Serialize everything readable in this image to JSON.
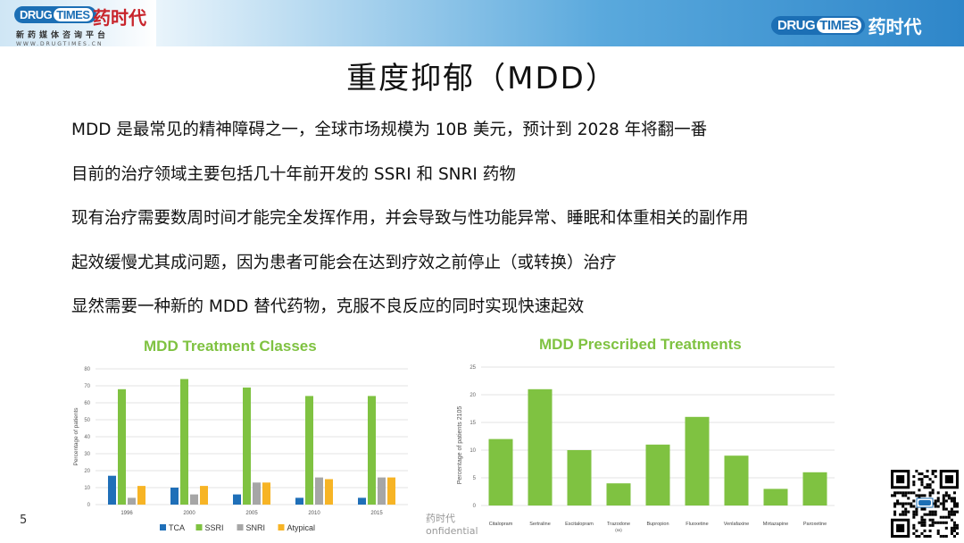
{
  "header": {
    "logo_left_badge_a": "DRUG",
    "logo_left_badge_b": "TIMES",
    "logo_left_cn": "药时代",
    "logo_left_sub": "新药媒体咨询平台",
    "logo_left_url": "WWW.DRUGTIMES.CN",
    "logo_right_badge_a": "DRUG",
    "logo_right_badge_b": "TIMES",
    "logo_right_cn": "药时代"
  },
  "slide": {
    "title": "重度抑郁（MDD）",
    "bullets": [
      "MDD 是最常见的精神障碍之一，全球市场规模为 10B 美元，预计到 2028 年将翻一番",
      "目前的治疗领域主要包括几十年前开发的 SSRI 和 SNRI 药物",
      "现有治疗需要数周时间才能完全发挥作用，并会导致与性功能异常、睡眠和体重相关的副作用",
      "起效缓慢尤其成问题，因为患者可能会在达到疗效之前停止（或转换）治疗",
      "显然需要一种新的 MDD 替代药物，克服不良反应的同时实现快速起效"
    ],
    "page_number": "5",
    "confidential_1": "药时代",
    "confidential_2": "onfidential"
  },
  "chart_data": [
    {
      "type": "bar",
      "title": "MDD Treatment Classes",
      "xlabel": "",
      "ylabel": "Percentage of patients",
      "ylim": [
        0,
        80
      ],
      "yticks": [
        0,
        10,
        20,
        30,
        40,
        50,
        60,
        70,
        80
      ],
      "categories": [
        "1996",
        "2000",
        "2005",
        "2010",
        "2015"
      ],
      "series": [
        {
          "name": "TCA",
          "color": "#1f6fb8",
          "values": [
            17,
            10,
            6,
            4,
            4
          ]
        },
        {
          "name": "SSRI",
          "color": "#7fc241",
          "values": [
            68,
            74,
            69,
            64,
            64
          ]
        },
        {
          "name": "SNRI",
          "color": "#a6a6a6",
          "values": [
            4,
            6,
            13,
            16,
            16
          ]
        },
        {
          "name": "Atypical",
          "color": "#f7b425",
          "values": [
            11,
            11,
            13,
            15,
            16
          ]
        }
      ],
      "legend": "bottom",
      "grid": true
    },
    {
      "type": "bar",
      "title": "MDD Prescribed Treatments",
      "xlabel": "",
      "ylabel": "Percentage of patients 2105",
      "ylim": [
        0,
        25
      ],
      "yticks": [
        0,
        5,
        10,
        15,
        20,
        25
      ],
      "categories": [
        "Citalopram",
        "Sertraline",
        "Escitalopram",
        "Trazodone (ss)",
        "Bupropion",
        "Fluoxetine",
        "Venlafaxine",
        "Mirtazapine",
        "Paroxetine"
      ],
      "series": [
        {
          "name": "",
          "color": "#7fc241",
          "values": [
            12,
            21,
            10,
            4,
            11,
            16,
            9,
            3,
            6
          ]
        }
      ],
      "grid": true
    }
  ]
}
